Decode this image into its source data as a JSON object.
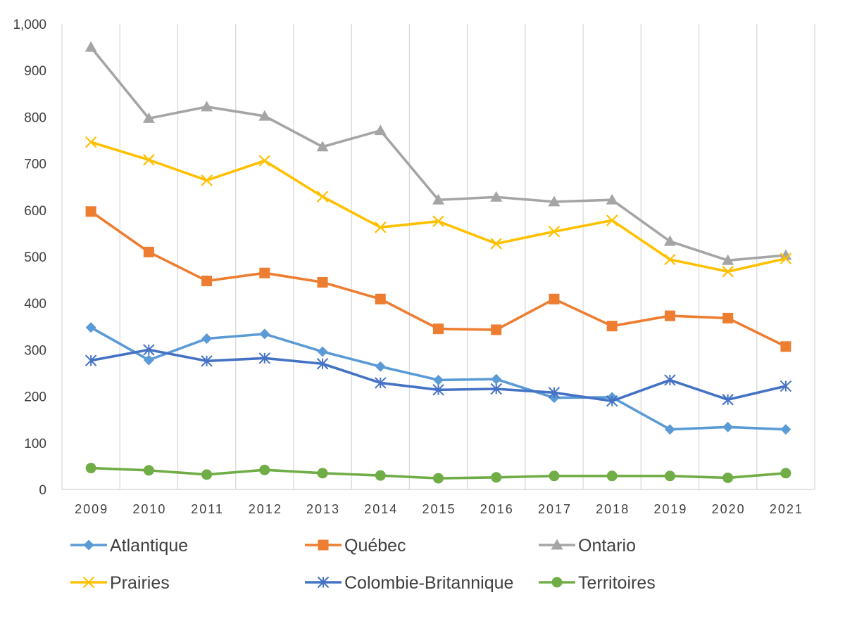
{
  "chart_data": {
    "type": "line",
    "x": [
      "2009",
      "2010",
      "2011",
      "2012",
      "2013",
      "2014",
      "2015",
      "2016",
      "2017",
      "2018",
      "2019",
      "2020",
      "2021"
    ],
    "ylim": [
      0,
      1000
    ],
    "yticks": [
      0,
      100,
      200,
      300,
      400,
      500,
      600,
      700,
      800,
      900,
      1000
    ],
    "ytick_labels": [
      "0",
      "100",
      "200",
      "300",
      "400",
      "500",
      "600",
      "700",
      "800",
      "900",
      "1,000"
    ],
    "grid": "vertical",
    "legend_position": "bottom",
    "series": [
      {
        "name": "Atlantique",
        "color": "#5b9bd5",
        "marker": "diamond",
        "values": [
          348,
          278,
          324,
          334,
          296,
          264,
          235,
          237,
          197,
          198,
          129,
          134,
          129
        ]
      },
      {
        "name": "Québec",
        "color": "#ed7d31",
        "marker": "square",
        "values": [
          597,
          510,
          448,
          465,
          445,
          409,
          345,
          343,
          409,
          351,
          373,
          368,
          307
        ]
      },
      {
        "name": "Ontario",
        "color": "#a5a5a5",
        "marker": "triangle",
        "values": [
          950,
          797,
          822,
          802,
          736,
          771,
          622,
          628,
          618,
          622,
          533,
          492,
          503
        ]
      },
      {
        "name": "Prairies",
        "color": "#ffc000",
        "marker": "x",
        "values": [
          746,
          708,
          664,
          706,
          629,
          563,
          576,
          528,
          554,
          578,
          494,
          468,
          496
        ]
      },
      {
        "name": "Colombie-Britannique",
        "color": "#4472c4",
        "marker": "asterisk",
        "values": [
          277,
          300,
          276,
          282,
          270,
          229,
          214,
          216,
          208,
          190,
          235,
          193,
          222
        ]
      },
      {
        "name": "Territoires",
        "color": "#70ad47",
        "marker": "circle",
        "values": [
          46,
          41,
          32,
          42,
          35,
          30,
          24,
          26,
          29,
          29,
          29,
          25,
          35
        ]
      }
    ]
  }
}
